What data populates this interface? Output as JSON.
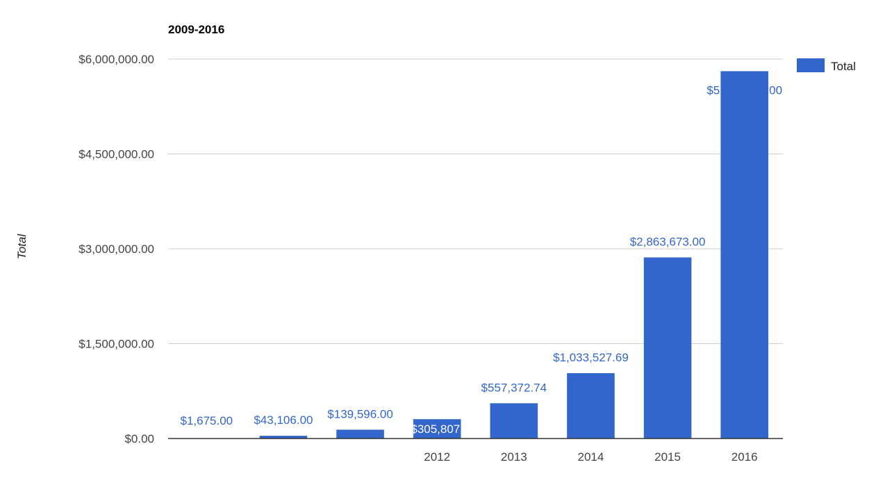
{
  "chart_data": {
    "type": "bar",
    "title": "2009-2016",
    "ylabel": "Total",
    "xlabel": "",
    "ylim": [
      0,
      6000000
    ],
    "yticks": [
      0,
      1500000,
      3000000,
      4500000,
      6000000
    ],
    "ytick_labels": [
      "$0.00",
      "$1,500,000.00",
      "$3,000,000.00",
      "$4,500,000.00",
      "$6,000,000.00"
    ],
    "categories": [
      "",
      "",
      "",
      "2012",
      "2013",
      "2014",
      "2015",
      "2016"
    ],
    "series": [
      {
        "name": "Total",
        "color": "#3366cc",
        "values": [
          1675,
          43106,
          139596,
          305807,
          557372.74,
          1033527.69,
          2863673,
          5808460
        ],
        "data_labels": [
          "$1,675.00",
          "$43,106.00",
          "$139,596.00",
          "$305,807.",
          "$557,372.74",
          "$1,033,527.69",
          "$2,863,673.00",
          "$5,808,460.00"
        ]
      }
    ],
    "grid": true,
    "legend": {
      "position": "right",
      "entries": [
        "Total"
      ]
    },
    "colors": {
      "bar": "#3366cc",
      "label": "#3366cc",
      "label_on_bar": "#ffffff",
      "grid": "#cccccc",
      "axis": "#333333"
    }
  }
}
